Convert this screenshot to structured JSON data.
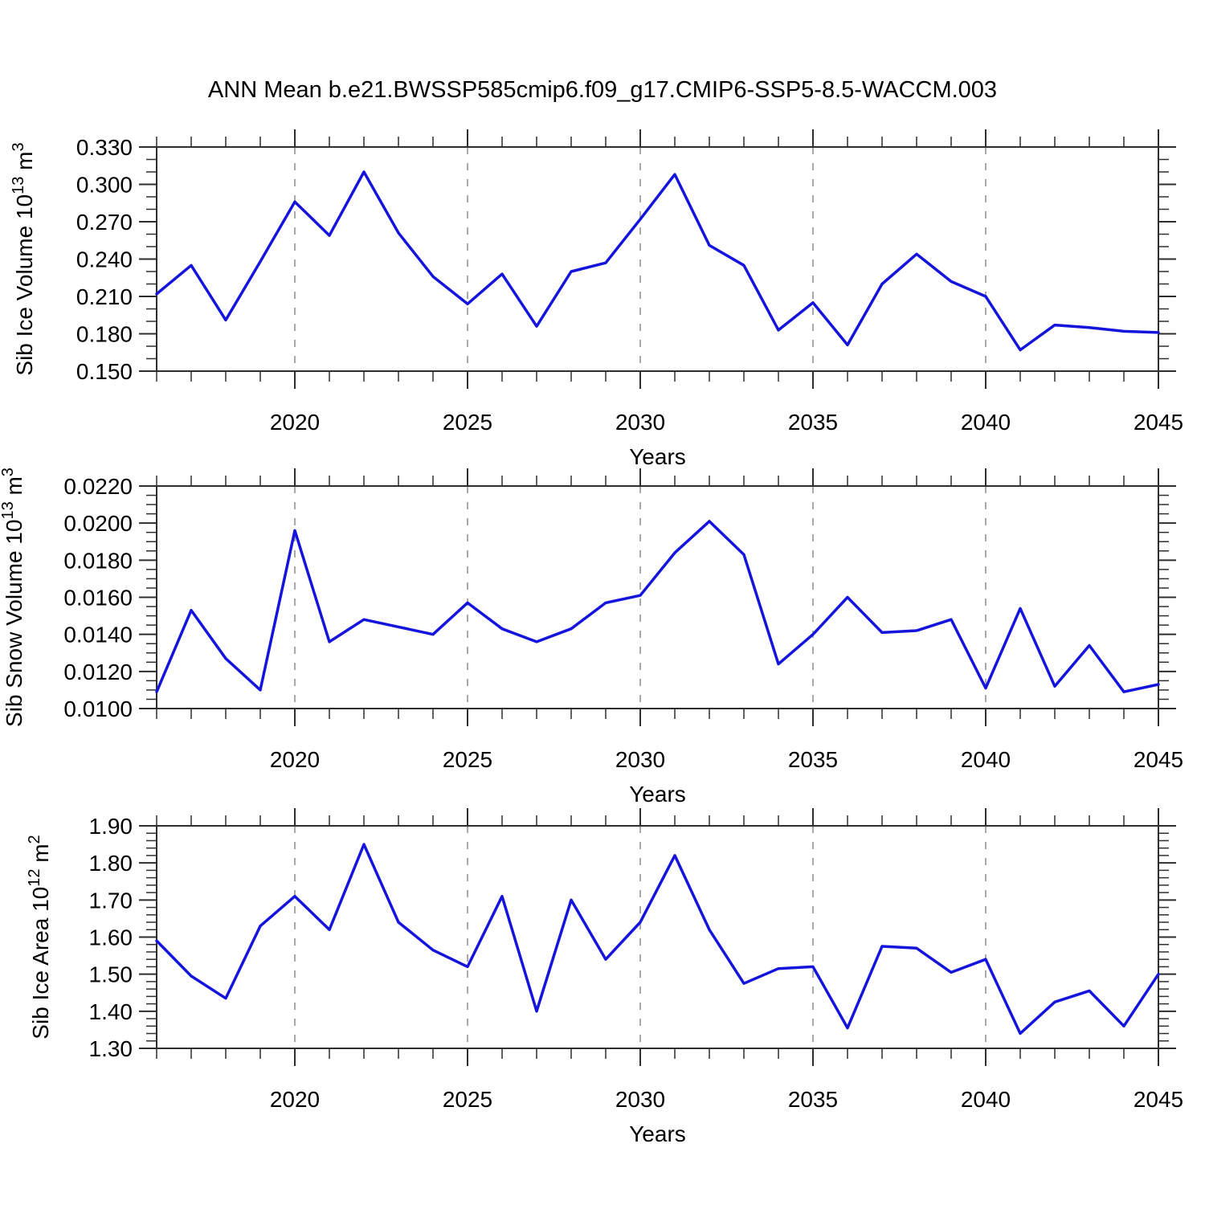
{
  "title": "ANN Mean b.e21.BWSSP585cmip6.f09_g17.CMIP6-SSP5-8.5-WACCM.003",
  "figure": {
    "background": "#ffffff",
    "line_color": "#1414dc",
    "axis_color": "#2e2e2e",
    "gridline_color": "#a9a9a9",
    "text_color": "#000000"
  },
  "xaxis": {
    "label": "Years",
    "years_start": 2016,
    "years_end": 2045,
    "major_ticks": [
      2020,
      2025,
      2030,
      2035,
      2040,
      2045
    ],
    "gridline_years": [
      2020,
      2025,
      2030,
      2035,
      2040
    ]
  },
  "chart_data": [
    {
      "id": "sib-ice-volume",
      "type": "line",
      "title": "Sib Ice Volume",
      "ylabel_text": "Sib Ice Volume 10^13 m^3",
      "ylabel_parts": [
        {
          "text": "Sib Ice Volume 10"
        },
        {
          "text": "13",
          "sup": true
        },
        {
          "text": " m"
        },
        {
          "text": "3",
          "sup": true
        }
      ],
      "xlabel": "Years",
      "ylim": [
        0.15,
        0.33
      ],
      "y_minor_step": 0.01,
      "ytick_values": [
        0.15,
        0.18,
        0.21,
        0.24,
        0.27,
        0.3,
        0.33
      ],
      "ytick_labels": [
        "0.150",
        "0.180",
        "0.210",
        "0.240",
        "0.270",
        "0.300",
        "0.330"
      ],
      "x": [
        2016,
        2017,
        2018,
        2019,
        2020,
        2021,
        2022,
        2023,
        2024,
        2025,
        2026,
        2027,
        2028,
        2029,
        2030,
        2031,
        2032,
        2033,
        2034,
        2035,
        2036,
        2037,
        2038,
        2039,
        2040,
        2041,
        2042,
        2043,
        2044,
        2045
      ],
      "values": [
        0.212,
        0.235,
        0.191,
        0.238,
        0.286,
        0.259,
        0.31,
        0.261,
        0.226,
        0.204,
        0.228,
        0.186,
        0.23,
        0.237,
        0.272,
        0.308,
        0.251,
        0.235,
        0.183,
        0.205,
        0.171,
        0.22,
        0.244,
        0.222,
        0.21,
        0.167,
        0.187,
        0.185,
        0.182,
        0.181
      ]
    },
    {
      "id": "sib-snow-volume",
      "type": "line",
      "title": "Sib Snow Volume",
      "ylabel_text": "Sib Snow Volume 10^13 m^3",
      "ylabel_parts": [
        {
          "text": "Sib Snow Volume 10"
        },
        {
          "text": "13",
          "sup": true
        },
        {
          "text": " m"
        },
        {
          "text": "3",
          "sup": true
        }
      ],
      "xlabel": "Years",
      "ylim": [
        0.01,
        0.022
      ],
      "y_minor_step": 0.0005,
      "ytick_values": [
        0.01,
        0.012,
        0.014,
        0.016,
        0.018,
        0.02,
        0.022
      ],
      "ytick_labels": [
        "0.0100",
        "0.0120",
        "0.0140",
        "0.0160",
        "0.0180",
        "0.0200",
        "0.0220"
      ],
      "x": [
        2016,
        2017,
        2018,
        2019,
        2020,
        2021,
        2022,
        2023,
        2024,
        2025,
        2026,
        2027,
        2028,
        2029,
        2030,
        2031,
        2032,
        2033,
        2034,
        2035,
        2036,
        2037,
        2038,
        2039,
        2040,
        2041,
        2042,
        2043,
        2044,
        2045
      ],
      "values": [
        0.0109,
        0.0153,
        0.0127,
        0.011,
        0.0196,
        0.0136,
        0.0148,
        0.0144,
        0.014,
        0.0157,
        0.0143,
        0.0136,
        0.0143,
        0.0157,
        0.0161,
        0.0184,
        0.0201,
        0.0183,
        0.0124,
        0.014,
        0.016,
        0.0141,
        0.0142,
        0.0148,
        0.0111,
        0.0154,
        0.0112,
        0.0134,
        0.0109,
        0.0113
      ]
    },
    {
      "id": "sib-ice-area",
      "type": "line",
      "title": "Sib Ice Area",
      "ylabel_text": "Sib Ice Area 10^12 m^2",
      "ylabel_parts": [
        {
          "text": "Sib Ice Area 10"
        },
        {
          "text": "12",
          "sup": true
        },
        {
          "text": " m"
        },
        {
          "text": "2",
          "sup": true
        }
      ],
      "xlabel": "Years",
      "ylim": [
        1.3,
        1.9
      ],
      "y_minor_step": 0.02,
      "ytick_values": [
        1.3,
        1.4,
        1.5,
        1.6,
        1.7,
        1.8,
        1.9
      ],
      "ytick_labels": [
        "1.30",
        "1.40",
        "1.50",
        "1.60",
        "1.70",
        "1.80",
        "1.90"
      ],
      "x": [
        2016,
        2017,
        2018,
        2019,
        2020,
        2021,
        2022,
        2023,
        2024,
        2025,
        2026,
        2027,
        2028,
        2029,
        2030,
        2031,
        2032,
        2033,
        2034,
        2035,
        2036,
        2037,
        2038,
        2039,
        2040,
        2041,
        2042,
        2043,
        2044,
        2045
      ],
      "values": [
        1.59,
        1.495,
        1.435,
        1.63,
        1.71,
        1.62,
        1.85,
        1.64,
        1.565,
        1.52,
        1.71,
        1.4,
        1.7,
        1.54,
        1.64,
        1.82,
        1.62,
        1.475,
        1.515,
        1.52,
        1.355,
        1.575,
        1.57,
        1.505,
        1.54,
        1.34,
        1.425,
        1.455,
        1.36,
        1.5
      ]
    }
  ]
}
